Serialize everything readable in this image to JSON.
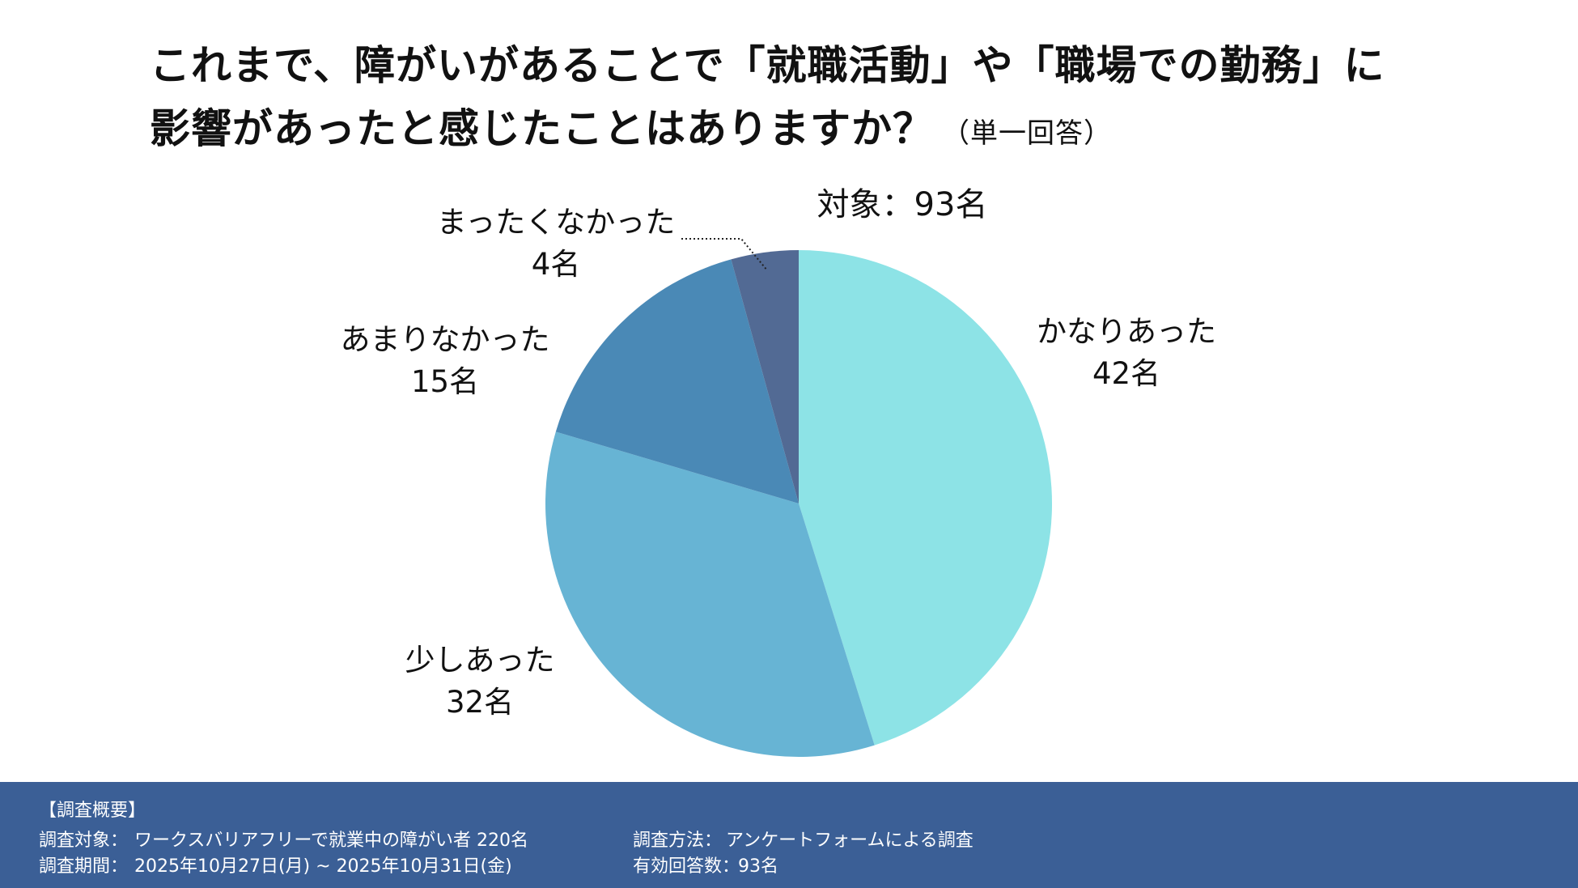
{
  "title": {
    "line1": "これまで、障がいがあることで「就職活動」や「職場での勤務」に",
    "line2": "影響があったと感じたことはありますか？",
    "note": "（単一回答）"
  },
  "target": "対象：93名",
  "colors": {
    "slices": [
      "#8de3e6",
      "#67b4d4",
      "#4a89b6",
      "#526a94"
    ],
    "footer_bg": "#3b5f96"
  },
  "chart_data": {
    "type": "pie",
    "total": 93,
    "start_angle_deg": 0,
    "direction": "clockwise",
    "slices": [
      {
        "label": "かなりあった",
        "value": 42,
        "value_label": "42名"
      },
      {
        "label": "少しあった",
        "value": 32,
        "value_label": "32名"
      },
      {
        "label": "あまりなかった",
        "value": 15,
        "value_label": "15名"
      },
      {
        "label": "まったくなかった",
        "value": 4,
        "value_label": "4名"
      }
    ]
  },
  "footer": {
    "heading": "【調査概要】",
    "target_label": "調査対象：",
    "target_value": "ワークスバリアフリーで就業中の障がい者 220名",
    "period_label": "調査期間：",
    "period_value": "2025年10月27日(月) ~ 2025年10月31日(金)",
    "method_label": "調査方法：",
    "method_value": "アンケートフォームによる調査",
    "responses_label": "有効回答数：",
    "responses_value": "93名"
  }
}
